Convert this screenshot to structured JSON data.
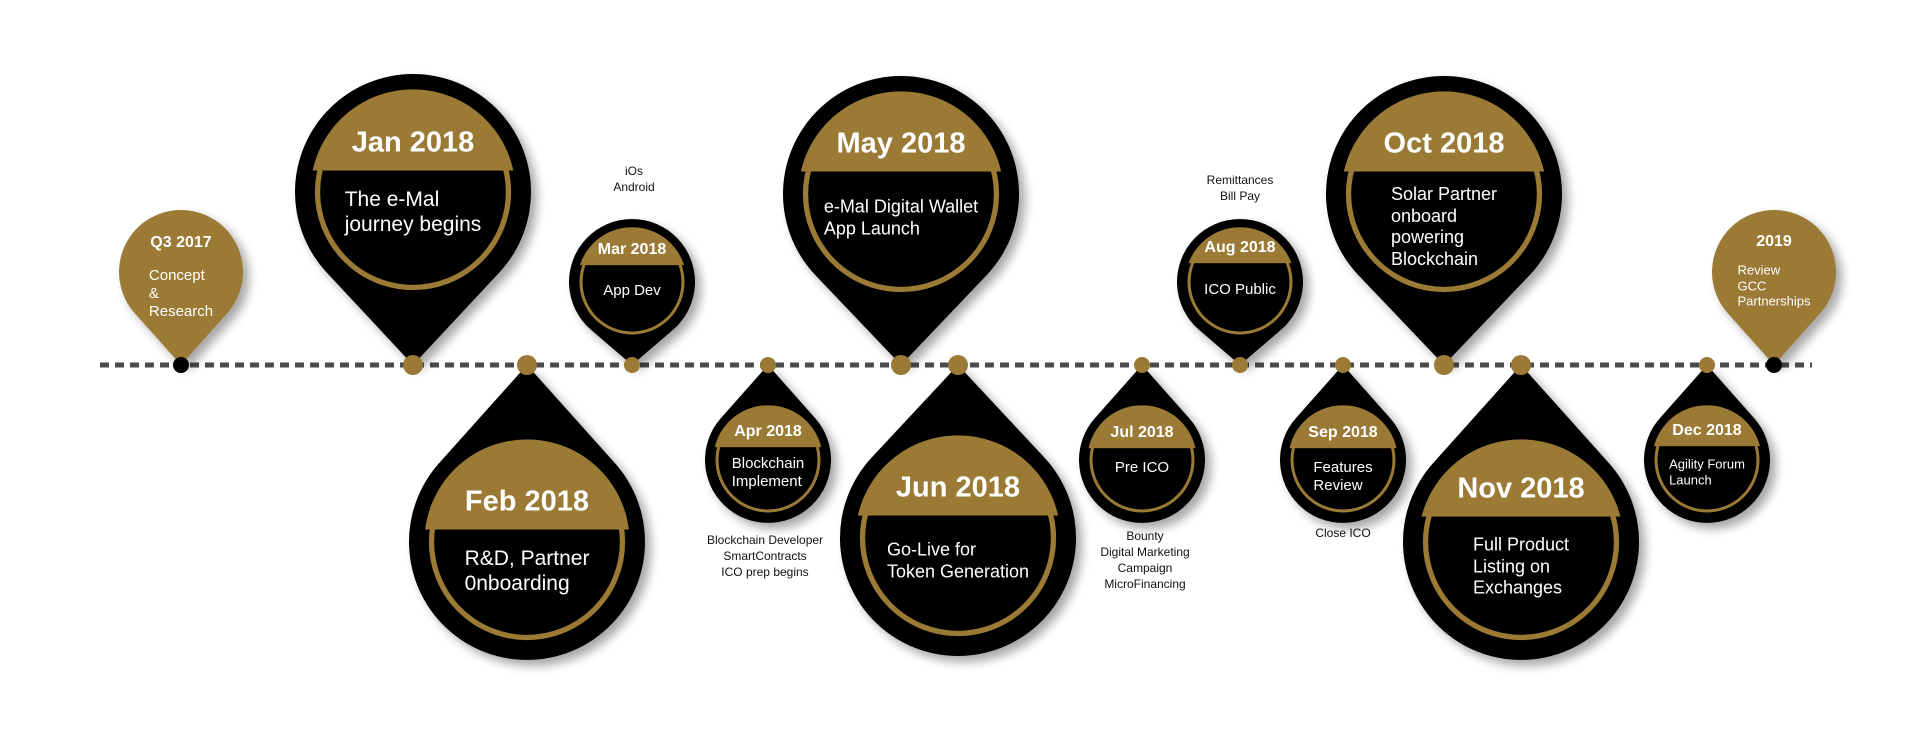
{
  "colors": {
    "gold": "#9a7a35",
    "black": "#000000",
    "white": "#ffffff",
    "line": "#4a4a4a"
  },
  "milestones": [
    {
      "id": "q3-2017",
      "title": "Q3 2017",
      "lines": [
        "Concept",
        "&",
        "Research"
      ],
      "style": "gold-solid",
      "direction": "up",
      "size": "small",
      "notes": []
    },
    {
      "id": "jan-2018",
      "title": "Jan 2018",
      "lines": [
        "The e-Mal",
        "journey begins"
      ],
      "style": "black-ringed",
      "direction": "up",
      "size": "large",
      "notes": []
    },
    {
      "id": "feb-2018",
      "title": "Feb 2018",
      "lines": [
        "R&D, Partner",
        "0nboarding"
      ],
      "style": "black-ringed",
      "direction": "down",
      "size": "large",
      "notes": []
    },
    {
      "id": "mar-2018",
      "title": "Mar 2018",
      "lines": [
        "App Dev"
      ],
      "style": "black-ringed",
      "direction": "up",
      "size": "small",
      "notes": [
        "iOs",
        "Android"
      ]
    },
    {
      "id": "apr-2018",
      "title": "Apr 2018",
      "lines": [
        "Blockchain",
        "Implement"
      ],
      "style": "black-ringed",
      "direction": "down",
      "size": "small",
      "notes": [
        "Blockchain Developer",
        "SmartContracts",
        "ICO prep begins"
      ]
    },
    {
      "id": "may-2018",
      "title": "May 2018",
      "lines": [
        "e-Mal Digital Wallet",
        "App Launch"
      ],
      "style": "black-ringed",
      "direction": "up",
      "size": "large",
      "notes": []
    },
    {
      "id": "jun-2018",
      "title": "Jun 2018",
      "lines": [
        "Go-Live for",
        "Token Generation"
      ],
      "style": "black-ringed",
      "direction": "down",
      "size": "large",
      "notes": []
    },
    {
      "id": "jul-2018",
      "title": "Jul 2018",
      "lines": [
        "Pre ICO"
      ],
      "style": "black-ringed",
      "direction": "down",
      "size": "small",
      "notes": [
        "Bounty",
        "Digital Marketing",
        "Campaign",
        "MicroFinancing"
      ]
    },
    {
      "id": "aug-2018",
      "title": "Aug 2018",
      "lines": [
        "ICO Public"
      ],
      "style": "black-ringed",
      "direction": "up",
      "size": "small",
      "notes": [
        "Remittances",
        "Bill Pay"
      ]
    },
    {
      "id": "sep-2018",
      "title": "Sep 2018",
      "lines": [
        "Features",
        "Review"
      ],
      "style": "black-ringed",
      "direction": "down",
      "size": "small",
      "notes": [
        "Close ICO"
      ]
    },
    {
      "id": "oct-2018",
      "title": "Oct 2018",
      "lines": [
        "Solar Partner",
        "onboard",
        "powering",
        "Blockchain"
      ],
      "style": "black-ringed",
      "direction": "up",
      "size": "large",
      "notes": []
    },
    {
      "id": "nov-2018",
      "title": "Nov 2018",
      "lines": [
        "Full Product",
        "Listing on",
        "Exchanges"
      ],
      "style": "black-ringed",
      "direction": "down",
      "size": "large",
      "notes": []
    },
    {
      "id": "dec-2018",
      "title": "Dec 2018",
      "lines": [
        "Agility Forum",
        "Launch"
      ],
      "style": "black-ringed",
      "direction": "down",
      "size": "small",
      "notes": []
    },
    {
      "id": "2019",
      "title": "2019",
      "lines": [
        "Review",
        "GCC",
        "Partnerships"
      ],
      "style": "gold-solid",
      "direction": "up",
      "size": "small",
      "notes": []
    }
  ]
}
